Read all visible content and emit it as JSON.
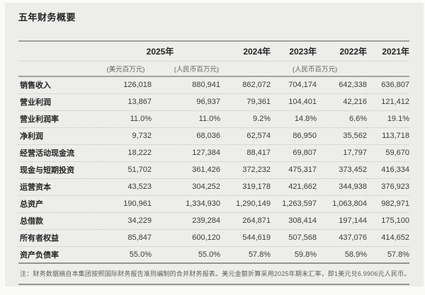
{
  "title": "五年财务概要",
  "table": {
    "year_headers": [
      "2025年",
      "2024年",
      "2023年",
      "2022年",
      "2021年"
    ],
    "unit_headers": [
      "(美元百万元)",
      "(人民币百万元)",
      "(人民币百万元)"
    ],
    "rows": [
      {
        "label": "销售收入",
        "values": [
          "126,018",
          "880,941",
          "862,072",
          "704,174",
          "642,338",
          "636,807"
        ]
      },
      {
        "label": "营业利润",
        "values": [
          "13,867",
          "96,937",
          "79,361",
          "104,401",
          "42,216",
          "121,412"
        ]
      },
      {
        "label": "营业利润率",
        "values": [
          "11.0%",
          "11.0%",
          "9.2%",
          "14.8%",
          "6.6%",
          "19.1%"
        ]
      },
      {
        "label": "净利润",
        "values": [
          "9,732",
          "68,036",
          "62,574",
          "86,950",
          "35,562",
          "113,718"
        ]
      },
      {
        "label": "经营活动现金流",
        "values": [
          "18,222",
          "127,384",
          "88,417",
          "69,807",
          "17,797",
          "59,670"
        ]
      },
      {
        "label": "现金与短期投资",
        "values": [
          "51,702",
          "361,426",
          "372,232",
          "475,317",
          "373,452",
          "416,334"
        ]
      },
      {
        "label": "运营资本",
        "values": [
          "43,523",
          "304,252",
          "319,178",
          "421,662",
          "344,938",
          "376,923"
        ]
      },
      {
        "label": "总资产",
        "values": [
          "190,961",
          "1,334,930",
          "1,290,149",
          "1,263,597",
          "1,063,804",
          "982,971"
        ]
      },
      {
        "label": "总借款",
        "values": [
          "34,229",
          "239,284",
          "264,871",
          "308,414",
          "197,144",
          "175,100"
        ]
      },
      {
        "label": "所有者权益",
        "values": [
          "85,847",
          "600,120",
          "544,619",
          "507,568",
          "437,076",
          "414,652"
        ]
      },
      {
        "label": "资产负债率",
        "values": [
          "55.0%",
          "55.0%",
          "57.8%",
          "59.8%",
          "58.9%",
          "57.8%"
        ]
      }
    ]
  },
  "footnote": "注：财务数据摘自本集团按照国际财务报告准则编制的合并财务报表。美元金额折算采用2025年期末汇率，即1美元兑6.9906元人民币。",
  "colors": {
    "panel_bg": "#ededeb",
    "heavy_line": "#a2a2a0",
    "light_line": "#d9d9d7",
    "dotted_line": "#c4c4c2",
    "footer_line": "#949492",
    "text_dark": "#262626",
    "text_gray": "#5e5e5e"
  }
}
